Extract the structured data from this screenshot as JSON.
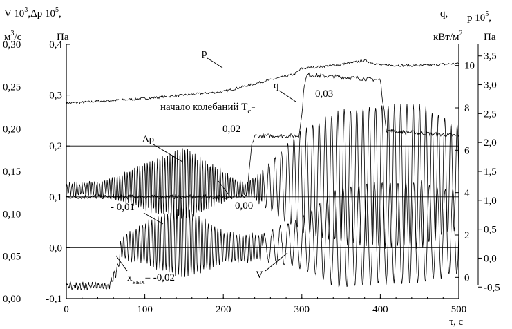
{
  "chart_data": {
    "type": "line",
    "title": "",
    "x_axis": {
      "label": "τ, с",
      "range": [
        0,
        500
      ],
      "ticks": [
        "0",
        "100",
        "200",
        "300",
        "400",
        "500"
      ]
    },
    "y_axes": {
      "left_outer": {
        "line1": "V 10",
        "sup": "3",
        "line1b": ",Δp 10",
        "sup2": "5",
        "line1c": ",",
        "unit": "м",
        "unit_sup": "3",
        "unit_end": "/с",
        "range": [
          0.0,
          0.3
        ],
        "ticks": [
          "0,00",
          "0,05",
          "0,10",
          "0,15",
          "0,20",
          "0,25",
          "0,30"
        ]
      },
      "left_inner": {
        "unit": "Па",
        "range": [
          -0.1,
          0.4
        ],
        "ticks": [
          "-0,1",
          "0,0",
          "0,1",
          "0,2",
          "0,3",
          "0,4"
        ]
      },
      "right_inner": {
        "line1": "q,",
        "unit": "кВт/м",
        "unit_sup": "2",
        "range": [
          -1,
          11
        ],
        "ticks": [
          "0",
          "2",
          "4",
          "6",
          "8",
          "10"
        ]
      },
      "right_outer": {
        "line1": "p 10",
        "sup": "5",
        "line1b": ",",
        "unit": "Па",
        "range": [
          -0.7,
          3.7
        ],
        "ticks": [
          "-0,5",
          "0,0",
          "0,5",
          "1,0",
          "1,5",
          "2,0",
          "2,5",
          "3,0",
          "3,5"
        ]
      }
    },
    "grid": "horizontal lines at left_inner 0.0, 0.1, 0.2, 0.3; bottom line at -0.1",
    "series": [
      {
        "name": "p",
        "axis": "right_outer",
        "x": [
          0,
          50,
          100,
          150,
          200,
          250,
          290,
          300,
          350,
          380,
          400,
          450,
          500
        ],
        "y": [
          2.68,
          2.72,
          2.76,
          2.82,
          2.88,
          3.05,
          3.18,
          3.28,
          3.35,
          3.42,
          3.34,
          3.33,
          3.37
        ]
      },
      {
        "name": "q",
        "axis": "left_inner",
        "x": [
          0,
          230,
          233,
          236,
          240,
          296,
          300,
          303,
          307,
          400,
          403,
          408,
          500
        ],
        "y": [
          0.1,
          0.1,
          0.15,
          0.2,
          0.22,
          0.22,
          0.26,
          0.32,
          0.34,
          0.33,
          0.29,
          0.23,
          0.22
        ]
      },
      {
        "name": "Δp",
        "axis": "left_inner",
        "x": [
          0,
          50,
          100,
          150,
          200,
          230,
          300,
          350,
          400,
          450,
          500
        ],
        "amplitude": [
          0.01,
          0.015,
          0.045,
          0.07,
          0.03,
          0.01,
          0.1,
          0.13,
          0.14,
          0.14,
          0.1
        ],
        "center": [
          0.115,
          0.115,
          0.12,
          0.125,
          0.12,
          0.115,
          0.13,
          0.14,
          0.14,
          0.14,
          0.14
        ]
      },
      {
        "name": "V",
        "axis": "left_inner",
        "x": [
          0,
          55,
          65,
          70,
          100,
          150,
          200,
          250,
          300,
          350,
          400,
          450,
          500
        ],
        "amplitude": [
          0.005,
          0.005,
          0.01,
          0.02,
          0.04,
          0.07,
          0.03,
          0.025,
          0.05,
          0.1,
          0.1,
          0.1,
          0.08
        ],
        "center": [
          -0.075,
          -0.075,
          -0.04,
          0.0,
          0.01,
          0.01,
          0.0,
          0.0,
          0.01,
          0.02,
          0.03,
          0.03,
          0.03
        ]
      }
    ],
    "annotations": {
      "p": "p",
      "q": "q",
      "dp": "Δp",
      "V": "V",
      "start_osc": "начало колебаний T",
      "start_osc_sub": "c",
      "start_osc_sub2": "−",
      "v003": "0,03",
      "v002": "0,02",
      "v000": "0,00",
      "vm001": "- 0,01",
      "xout_a": "x",
      "xout_sub": "вых",
      "xout_b": "= -0,02"
    }
  }
}
